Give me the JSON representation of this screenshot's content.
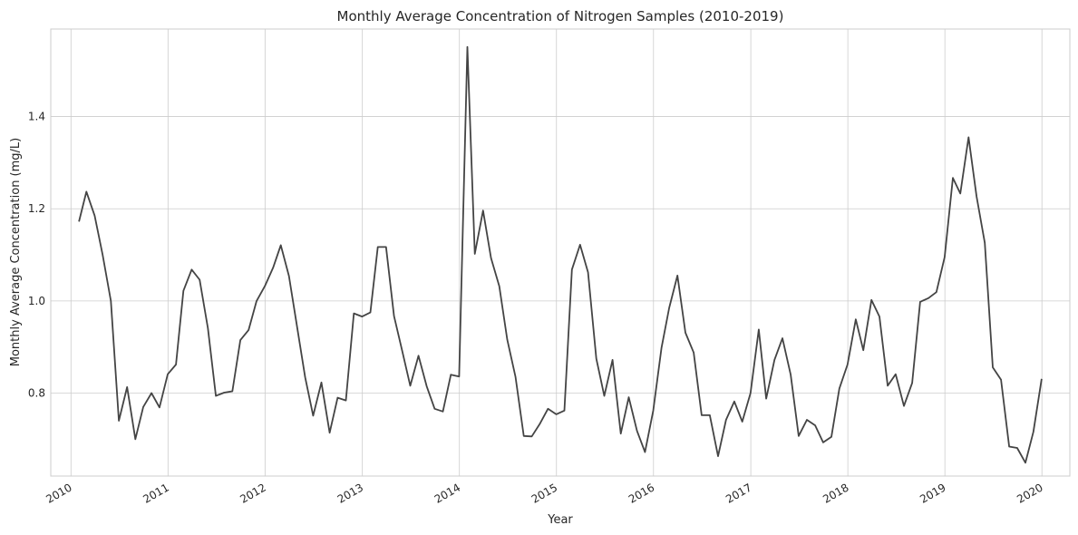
{
  "chart_data": {
    "type": "line",
    "title": "Monthly Average Concentration of Nitrogen Samples (2010-2019)",
    "xlabel": "Year",
    "ylabel": "Monthly Average Concentration (mg/L)",
    "x_ticks": [
      "2010",
      "2011",
      "2012",
      "2013",
      "2014",
      "2015",
      "2016",
      "2017",
      "2018",
      "2019",
      "2020"
    ],
    "y_ticks": [
      "0.8",
      "1.0",
      "1.2",
      "1.4"
    ],
    "y_tick_values": [
      0.8,
      1.0,
      1.2,
      1.4
    ],
    "xlim": [
      "2009-10-17",
      "2020-04-15"
    ],
    "ylim": [
      0.62,
      1.59
    ],
    "grid": true,
    "line_color": "#444444",
    "series": [
      {
        "x": [
          "2010-01-31",
          "2010-02-28",
          "2010-03-31",
          "2010-04-30",
          "2010-05-31",
          "2010-06-30",
          "2010-07-31",
          "2010-08-31",
          "2010-09-30",
          "2010-10-31",
          "2010-11-30",
          "2010-12-31",
          "2011-01-31",
          "2011-02-28",
          "2011-03-31",
          "2011-04-30",
          "2011-05-31",
          "2011-06-30",
          "2011-07-31",
          "2011-08-31",
          "2011-09-30",
          "2011-10-31",
          "2011-11-30",
          "2011-12-31",
          "2012-01-31",
          "2012-02-29",
          "2012-03-31",
          "2012-04-30",
          "2012-05-31",
          "2012-06-30",
          "2012-07-31",
          "2012-08-31",
          "2012-09-30",
          "2012-10-31",
          "2012-11-30",
          "2012-12-31",
          "2013-01-31",
          "2013-02-28",
          "2013-03-31",
          "2013-04-30",
          "2013-05-31",
          "2013-06-30",
          "2013-07-31",
          "2013-08-31",
          "2013-09-30",
          "2013-10-31",
          "2013-11-30",
          "2013-12-31",
          "2014-01-31",
          "2014-02-28",
          "2014-03-31",
          "2014-04-30",
          "2014-05-31",
          "2014-06-30",
          "2014-07-31",
          "2014-08-31",
          "2014-09-30",
          "2014-10-31",
          "2014-11-30",
          "2014-12-31",
          "2015-01-31",
          "2015-02-28",
          "2015-03-31",
          "2015-04-30",
          "2015-05-31",
          "2015-06-30",
          "2015-07-31",
          "2015-08-31",
          "2015-09-30",
          "2015-10-31",
          "2015-11-30",
          "2015-12-31",
          "2016-01-31",
          "2016-02-29",
          "2016-03-31",
          "2016-04-30",
          "2016-05-31",
          "2016-06-30",
          "2016-07-31",
          "2016-08-31",
          "2016-09-30",
          "2016-10-31",
          "2016-11-30",
          "2016-12-31",
          "2017-01-31",
          "2017-02-28",
          "2017-03-31",
          "2017-04-30",
          "2017-05-31",
          "2017-06-30",
          "2017-07-31",
          "2017-08-31",
          "2017-09-30",
          "2017-10-31",
          "2017-11-30",
          "2017-12-31",
          "2018-01-31",
          "2018-02-28",
          "2018-03-31",
          "2018-04-30",
          "2018-05-31",
          "2018-06-30",
          "2018-07-31",
          "2018-08-31",
          "2018-09-30",
          "2018-10-31",
          "2018-11-30",
          "2018-12-31",
          "2019-01-31",
          "2019-02-28",
          "2019-03-31",
          "2019-04-30",
          "2019-05-31",
          "2019-06-30",
          "2019-07-31",
          "2019-08-31",
          "2019-09-30",
          "2019-10-31",
          "2019-11-30",
          "2019-12-31"
        ],
        "values": [
          1.172,
          1.237,
          1.185,
          1.1,
          1.0,
          0.74,
          0.813,
          0.7,
          0.77,
          0.8,
          0.769,
          0.841,
          0.862,
          1.022,
          1.068,
          1.046,
          0.941,
          0.794,
          0.801,
          0.804,
          0.915,
          0.937,
          1.0,
          1.032,
          1.072,
          1.121,
          1.054,
          0.946,
          0.834,
          0.751,
          0.823,
          0.714,
          0.79,
          0.784,
          0.973,
          0.966,
          0.975,
          1.117,
          1.117,
          0.967,
          0.891,
          0.816,
          0.881,
          0.815,
          0.766,
          0.76,
          0.84,
          0.836,
          1.551,
          1.102,
          1.196,
          1.093,
          1.032,
          0.916,
          0.835,
          0.707,
          0.706,
          0.734,
          0.766,
          0.754,
          0.762,
          1.068,
          1.122,
          1.062,
          0.875,
          0.794,
          0.872,
          0.712,
          0.791,
          0.718,
          0.672,
          0.762,
          0.898,
          0.985,
          1.055,
          0.931,
          0.888,
          0.752,
          0.752,
          0.663,
          0.742,
          0.782,
          0.738,
          0.8,
          0.938,
          0.788,
          0.872,
          0.919,
          0.84,
          0.707,
          0.742,
          0.73,
          0.693,
          0.705,
          0.81,
          0.862,
          0.96,
          0.893,
          1.002,
          0.966,
          0.816,
          0.841,
          0.772,
          0.822,
          0.998,
          1.006,
          1.019,
          1.095,
          1.267,
          1.233,
          1.355,
          1.227,
          1.126,
          0.856,
          0.829,
          0.684,
          0.681,
          0.649,
          0.716,
          0.831
        ]
      }
    ]
  }
}
